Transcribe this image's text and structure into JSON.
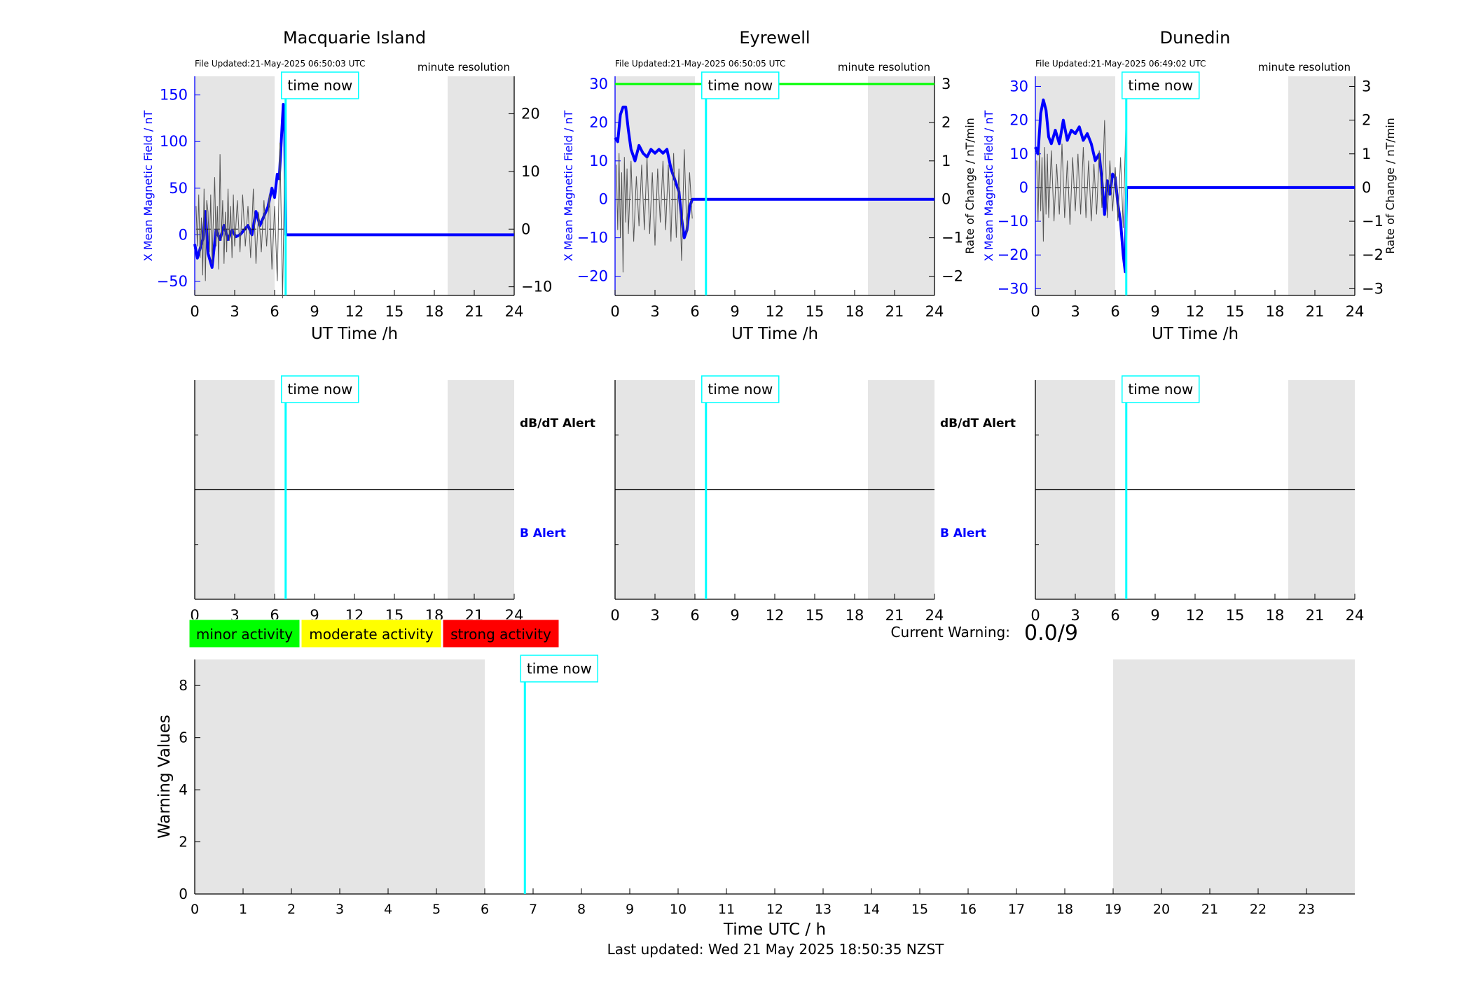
{
  "figure": {
    "time_now_label": "time now",
    "footer": "Last updated: Wed 21 May 2025 18:50:35 NZST",
    "current_warning_label": "Current Warning:",
    "current_warning_value": "0.0/9",
    "activity_legend": [
      {
        "label": "minor activity",
        "color": "#00ff00"
      },
      {
        "label": "moderate activity",
        "color": "#ffff00"
      },
      {
        "label": "strong activity",
        "color": "#ff0000"
      }
    ],
    "colors": {
      "field": "#0000ff",
      "rate": "#555555",
      "time_now": "#00ffff",
      "night_shade": "#e5e5e5",
      "threshold": "#00ff00"
    }
  },
  "chart_data": [
    {
      "id": "macquarie",
      "type": "line",
      "title": "Macquarie Island",
      "file_updated": "File Updated:21-May-2025 06:50:03 UTC",
      "resolution": "minute resolution",
      "xlabel": "UT Time /h",
      "ylabel_left": "X Mean Magnetic Field / nT",
      "ylabel_right": "",
      "xlim": [
        0,
        24
      ],
      "xticks": [
        0,
        3,
        6,
        9,
        12,
        15,
        18,
        21,
        24
      ],
      "ylim_left": [
        -65,
        170
      ],
      "yticks_left": [
        -50,
        0,
        50,
        100,
        150
      ],
      "ylim_right": [
        -11.5,
        26.5
      ],
      "yticks_right": [
        -10,
        0,
        10,
        20
      ],
      "night_shading": [
        [
          0,
          6
        ],
        [
          19,
          24
        ]
      ],
      "time_now": 6.83,
      "threshold_left": null,
      "series": [
        {
          "name": "X Mean Magnetic Field",
          "axis": "left",
          "x": [
            0,
            0.2,
            0.4,
            0.6,
            0.8,
            1.0,
            1.3,
            1.6,
            1.9,
            2.2,
            2.5,
            2.8,
            3.1,
            3.4,
            3.7,
            4.0,
            4.3,
            4.6,
            4.9,
            5.2,
            5.5,
            5.8,
            6.0,
            6.2,
            6.35,
            6.5,
            6.65,
            6.75,
            6.85,
            7.0,
            24
          ],
          "y": [
            -10,
            -25,
            -15,
            -5,
            25,
            -20,
            -35,
            5,
            -5,
            10,
            -5,
            5,
            -2,
            0,
            5,
            10,
            0,
            25,
            10,
            20,
            30,
            50,
            40,
            65,
            60,
            100,
            140,
            120,
            0,
            0,
            0
          ]
        },
        {
          "name": "Rate of Change",
          "axis": "right",
          "x": [
            0.1,
            0.2,
            0.3,
            0.4,
            0.5,
            0.6,
            0.7,
            0.8,
            0.9,
            1.0,
            1.1,
            1.2,
            1.3,
            1.4,
            1.5,
            1.6,
            1.7,
            1.8,
            1.9,
            2.0,
            2.1,
            2.2,
            2.3,
            2.4,
            2.5,
            2.6,
            2.7,
            2.8,
            2.9,
            3.0,
            3.2,
            3.4,
            3.6,
            3.8,
            4.0,
            4.2,
            4.4,
            4.6,
            4.8,
            5.0,
            5.2,
            5.4,
            5.6,
            5.8,
            6.0,
            6.2,
            6.4,
            6.6,
            6.8
          ],
          "y": [
            4,
            -3,
            6,
            -5,
            2,
            -8,
            7,
            -9,
            5,
            3,
            -4,
            6,
            -6,
            2,
            9,
            -3,
            4,
            -7,
            13,
            -2,
            5,
            -6,
            3,
            -4,
            7,
            -2,
            4,
            -5,
            6,
            -3,
            5,
            -4,
            6,
            -3,
            4,
            -5,
            7,
            -6,
            3,
            -4,
            5,
            -3,
            6,
            -7,
            4,
            -9,
            15,
            -12,
            18
          ]
        }
      ]
    },
    {
      "id": "eyrewell",
      "type": "line",
      "title": "Eyrewell",
      "file_updated": "File Updated:21-May-2025 06:50:05 UTC",
      "resolution": "minute resolution",
      "xlabel": "UT Time /h",
      "ylabel_left": "X Mean Magnetic Field / nT",
      "ylabel_right": "Rate of Change / nT/min",
      "xlim": [
        0,
        24
      ],
      "xticks": [
        0,
        3,
        6,
        9,
        12,
        15,
        18,
        21,
        24
      ],
      "ylim_left": [
        -25,
        32
      ],
      "yticks_left": [
        -20,
        -10,
        0,
        10,
        20,
        30
      ],
      "ylim_right": [
        -2.5,
        3.2
      ],
      "yticks_right": [
        -2,
        -1,
        0,
        1,
        2,
        3
      ],
      "night_shading": [
        [
          0,
          6
        ],
        [
          19,
          24
        ]
      ],
      "time_now": 6.83,
      "threshold_left": 30,
      "series": [
        {
          "name": "X Mean Magnetic Field",
          "axis": "left",
          "x": [
            0,
            0.2,
            0.4,
            0.6,
            0.8,
            1.0,
            1.2,
            1.5,
            1.8,
            2.1,
            2.4,
            2.7,
            3.0,
            3.3,
            3.6,
            3.9,
            4.2,
            4.5,
            4.8,
            5.0,
            5.2,
            5.4,
            5.6,
            5.8,
            6.0,
            24
          ],
          "y": [
            16,
            15,
            22,
            24,
            24,
            18,
            13,
            10,
            14,
            12,
            11,
            13,
            12,
            13,
            12,
            13,
            8,
            5,
            2,
            -5,
            -10,
            -8,
            -2,
            0,
            0,
            0
          ]
        },
        {
          "name": "Rate of Change",
          "axis": "right",
          "x": [
            0.1,
            0.2,
            0.3,
            0.4,
            0.5,
            0.6,
            0.7,
            0.8,
            0.9,
            1.0,
            1.2,
            1.4,
            1.6,
            1.8,
            2.0,
            2.2,
            2.4,
            2.6,
            2.8,
            3.0,
            3.2,
            3.4,
            3.6,
            3.8,
            4.0,
            4.2,
            4.4,
            4.6,
            4.8,
            5.0,
            5.2,
            5.4,
            5.6,
            5.8
          ],
          "y": [
            0.9,
            -0.8,
            1.2,
            -1.0,
            0.7,
            -1.9,
            1.1,
            -0.6,
            0.8,
            -0.9,
            1.0,
            -1.1,
            0.6,
            -0.7,
            0.9,
            -0.8,
            1.1,
            -0.9,
            0.7,
            -1.2,
            0.8,
            -0.6,
            1.0,
            -0.8,
            0.9,
            -1.1,
            1.2,
            -1.0,
            0.8,
            -1.6,
            1.3,
            -0.9,
            0.7,
            -0.5
          ]
        }
      ]
    },
    {
      "id": "dunedin",
      "type": "line",
      "title": "Dunedin",
      "file_updated": "File Updated:21-May-2025 06:49:02 UTC",
      "resolution": "minute resolution",
      "xlabel": "UT Time /h",
      "ylabel_left": "X Mean Magnetic Field / nT",
      "ylabel_right": "Rate of Change / nT/min",
      "xlim": [
        0,
        24
      ],
      "xticks": [
        0,
        3,
        6,
        9,
        12,
        15,
        18,
        21,
        24
      ],
      "ylim_left": [
        -32,
        33
      ],
      "yticks_left": [
        -30,
        -20,
        -10,
        0,
        10,
        20,
        30
      ],
      "ylim_right": [
        -3.2,
        3.3
      ],
      "yticks_right": [
        -3,
        -2,
        -1,
        0,
        1,
        2,
        3
      ],
      "night_shading": [
        [
          0,
          6
        ],
        [
          19,
          24
        ]
      ],
      "time_now": 6.83,
      "threshold_left": null,
      "series": [
        {
          "name": "X Mean Magnetic Field",
          "axis": "left",
          "x": [
            0,
            0.2,
            0.4,
            0.6,
            0.8,
            1.0,
            1.2,
            1.5,
            1.8,
            2.1,
            2.4,
            2.7,
            3.0,
            3.3,
            3.6,
            3.9,
            4.2,
            4.5,
            4.8,
            5.0,
            5.2,
            5.4,
            5.6,
            5.8,
            6.0,
            6.2,
            6.4,
            6.6,
            6.75,
            6.85,
            24
          ],
          "y": [
            12,
            10,
            22,
            26,
            23,
            15,
            13,
            17,
            13,
            20,
            14,
            17,
            16,
            18,
            14,
            16,
            13,
            8,
            10,
            2,
            -8,
            2,
            -2,
            4,
            3,
            -5,
            -10,
            -20,
            -25,
            0,
            0
          ]
        },
        {
          "name": "Rate of Change",
          "axis": "right",
          "x": [
            0.1,
            0.2,
            0.3,
            0.4,
            0.5,
            0.6,
            0.7,
            0.8,
            0.9,
            1.0,
            1.2,
            1.4,
            1.6,
            1.8,
            2.0,
            2.2,
            2.4,
            2.6,
            2.8,
            3.0,
            3.2,
            3.4,
            3.6,
            3.8,
            4.0,
            4.2,
            4.4,
            4.6,
            4.8,
            5.0,
            5.2,
            5.4,
            5.6,
            5.8,
            6.0,
            6.2,
            6.4,
            6.6,
            6.8
          ],
          "y": [
            0.8,
            -1.0,
            1.1,
            -0.7,
            0.9,
            -1.6,
            1.2,
            -0.8,
            1.0,
            -0.9,
            1.1,
            -1.0,
            0.7,
            -0.8,
            1.3,
            -0.9,
            0.8,
            -1.1,
            0.9,
            -0.7,
            1.0,
            -0.8,
            1.2,
            -0.9,
            0.8,
            -1.0,
            0.7,
            -0.8,
            1.1,
            -0.6,
            2.0,
            -0.9,
            0.8,
            -0.7,
            0.6,
            -1.0,
            0.9,
            -1.2,
            1.9
          ]
        }
      ]
    },
    {
      "id": "alert-macquarie",
      "type": "line",
      "title": "",
      "xlim": [
        0,
        24
      ],
      "xticks": [
        0,
        3,
        6,
        9,
        12,
        15,
        18,
        21,
        24
      ],
      "night_shading": [
        [
          0,
          6
        ],
        [
          19,
          24
        ]
      ],
      "time_now": 6.83,
      "labels": {
        "top": "dB/dT Alert",
        "bottom": "B Alert"
      },
      "series": []
    },
    {
      "id": "alert-eyrewell",
      "type": "line",
      "title": "",
      "xlim": [
        0,
        24
      ],
      "xticks": [
        0,
        3,
        6,
        9,
        12,
        15,
        18,
        21,
        24
      ],
      "night_shading": [
        [
          0,
          6
        ],
        [
          19,
          24
        ]
      ],
      "time_now": 6.83,
      "labels": {
        "top": "dB/dT Alert",
        "bottom": "B Alert"
      },
      "series": []
    },
    {
      "id": "alert-dunedin",
      "type": "line",
      "title": "",
      "xlim": [
        0,
        24
      ],
      "xticks": [
        0,
        3,
        6,
        9,
        12,
        15,
        18,
        21,
        24
      ],
      "night_shading": [
        [
          0,
          6
        ],
        [
          19,
          24
        ]
      ],
      "time_now": 6.83,
      "labels": {
        "top": "",
        "bottom": ""
      },
      "series": []
    },
    {
      "id": "warning",
      "type": "bar",
      "title": "",
      "xlabel": "Time UTC / h",
      "ylabel": "Warning Values",
      "xlim": [
        0,
        24
      ],
      "xticks": [
        0,
        1,
        2,
        3,
        4,
        5,
        6,
        7,
        8,
        9,
        10,
        11,
        12,
        13,
        14,
        15,
        16,
        17,
        18,
        19,
        20,
        21,
        22,
        23
      ],
      "ylim": [
        0,
        9
      ],
      "yticks": [
        0,
        2,
        4,
        6,
        8
      ],
      "night_shading": [
        [
          0,
          6
        ],
        [
          19,
          24
        ]
      ],
      "time_now": 6.83,
      "series": []
    }
  ]
}
